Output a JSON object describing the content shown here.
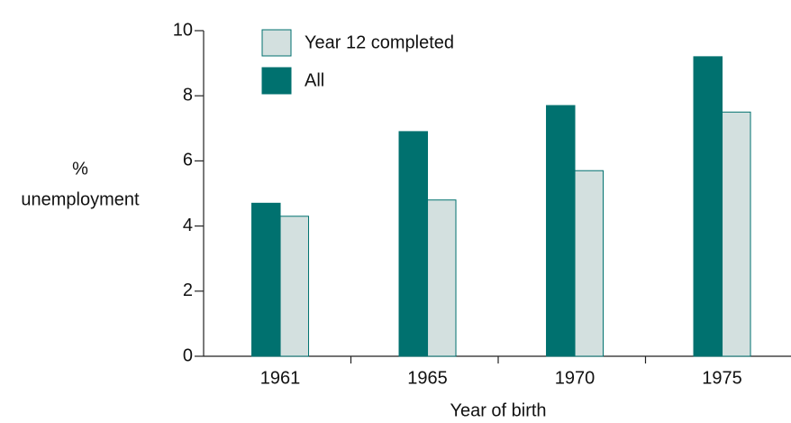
{
  "chart_data": {
    "type": "bar",
    "categories": [
      "1961",
      "1965",
      "1970",
      "1975"
    ],
    "series": [
      {
        "name": "Year 12 completed",
        "color": "#d3e0df",
        "values": [
          4.3,
          4.8,
          5.7,
          7.5
        ]
      },
      {
        "name": "All",
        "color": "#00716f",
        "values": [
          4.7,
          6.9,
          7.7,
          9.2
        ]
      }
    ],
    "xlabel": "Year of birth",
    "ylabel": [
      "%",
      "unemployment"
    ],
    "ylim": [
      0,
      10
    ],
    "yticks": [
      0,
      2,
      4,
      6,
      8,
      10
    ],
    "legend": "top-left"
  }
}
